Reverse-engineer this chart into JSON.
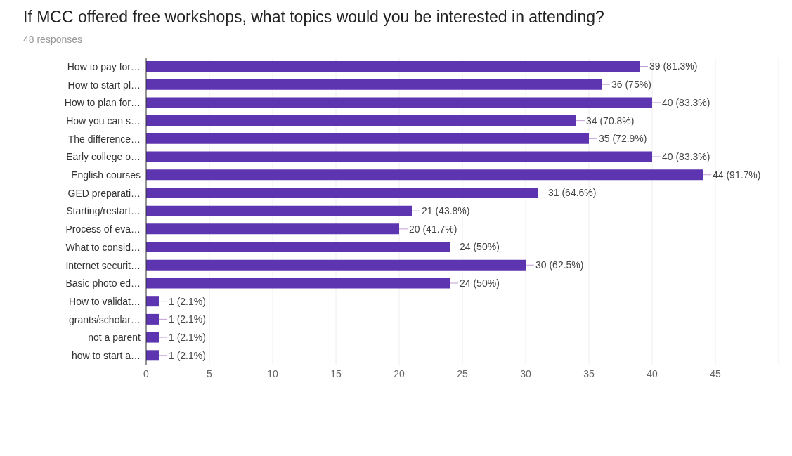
{
  "chart_data": {
    "type": "bar",
    "orientation": "horizontal",
    "title": "If MCC offered free workshops, what topics would you be interested in attending?",
    "subtitle": "48 responses",
    "categories": [
      "How to pay for…",
      "How to start pl…",
      "How to plan for…",
      "How you can s…",
      "The difference…",
      "Early college o…",
      "English courses",
      "GED preparati…",
      "Starting/restart…",
      "Process of eva…",
      "What to consid…",
      "Internet securit…",
      "Basic photo ed…",
      "How to validat…",
      "grants/scholar…",
      "not a parent",
      "how to start a…"
    ],
    "values": [
      39,
      36,
      40,
      34,
      35,
      40,
      44,
      31,
      21,
      20,
      24,
      30,
      24,
      1,
      1,
      1,
      1
    ],
    "value_labels": [
      "39 (81.3%)",
      "36 (75%)",
      "40 (83.3%)",
      "34 (70.8%)",
      "35 (72.9%)",
      "40 (83.3%)",
      "44 (91.7%)",
      "31 (64.6%)",
      "21 (43.8%)",
      "20 (41.7%)",
      "24 (50%)",
      "30 (62.5%)",
      "24 (50%)",
      "1 (2.1%)",
      "1 (2.1%)",
      "1 (2.1%)",
      "1 (2.1%)"
    ],
    "color": "#5e35b1",
    "xlim": [
      0,
      50
    ],
    "xticks": [
      0,
      5,
      10,
      15,
      20,
      25,
      30,
      35,
      40,
      45
    ],
    "grid": "x"
  }
}
